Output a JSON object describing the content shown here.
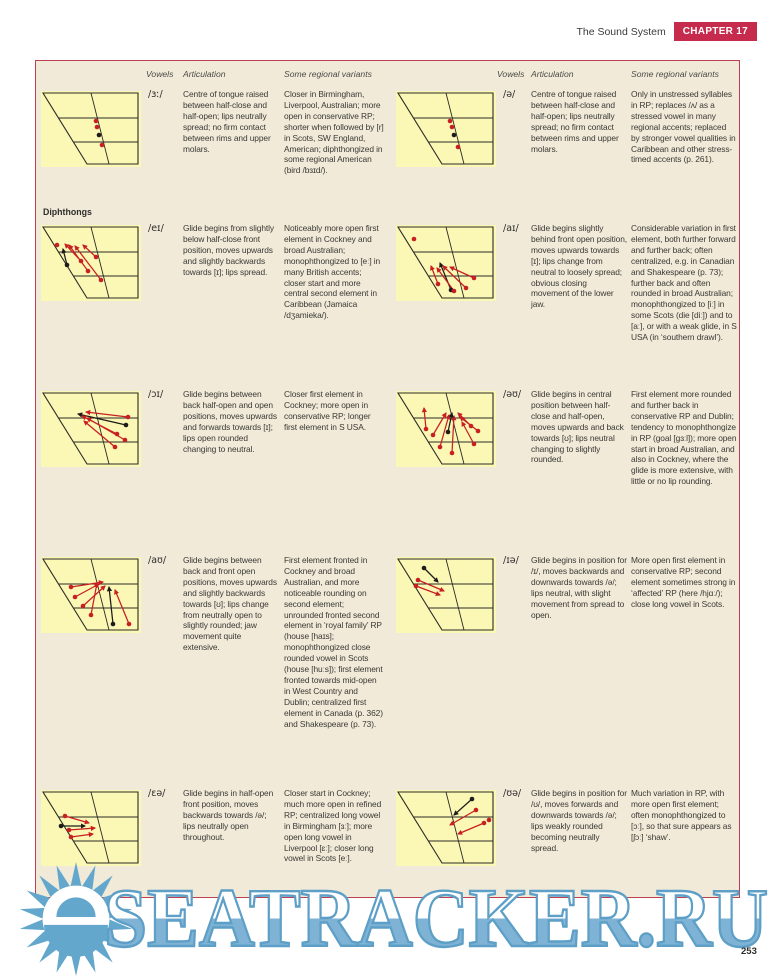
{
  "page": {
    "header_title": "The Sound System",
    "chapter_badge": "CHAPTER 17",
    "page_number": "253"
  },
  "colors": {
    "accent_red": "#c62a4c",
    "panel_background": "#f1ead9",
    "diagram_background": "#fbf7b4",
    "arrow_red": "#c81f23",
    "arrow_black": "#1d1c1a",
    "watermark_blue": "#64a7cc"
  },
  "table": {
    "col_headers": {
      "vowels": "Vowels",
      "articulation": "Articulation",
      "variants": "Some regional variants"
    },
    "section_label": "Diphthongs",
    "rows": [
      {
        "left": {
          "vowel": "/ɜː/",
          "articulation": "Centre of tongue raised between half-close and half-open; lips neutrally spread; no firm contact between rims and upper molars.",
          "variants": "Closer in Birmingham, Liverpool, Australian; more open in conservative RP; shorter when followed by [r] in Scots, SW England, American; diphthongized in some regional American (bird /bɜɪd/).",
          "diagram": {
            "arrows": [],
            "dots": [
              [
                55,
                30,
                "r"
              ],
              [
                56,
                36,
                "r"
              ],
              [
                58,
                44,
                "k"
              ],
              [
                61,
                54,
                "r"
              ]
            ]
          }
        },
        "right": {
          "vowel": "/ə/",
          "articulation": "Centre of tongue raised between half-close and half-open; lips neutrally spread; no firm contact between rims and upper molars.",
          "variants": "Only in unstressed syllables in RP; replaces /ʌ/ as a stressed vowel in many regional accents; replaced by stronger vowel qualities in Caribbean and other stress-timed accents (p. 261).",
          "diagram": {
            "arrows": [],
            "dots": [
              [
                54,
                30,
                "r"
              ],
              [
                56,
                36,
                "r"
              ],
              [
                58,
                44,
                "k"
              ],
              [
                62,
                56,
                "r"
              ]
            ]
          }
        }
      },
      {
        "left": {
          "vowel": "/eɪ/",
          "articulation": "Glide begins from slightly below half-close front position, moves upwards and slightly backwards towards [ɪ]; lips spread.",
          "variants": "Noticeably more open first element in Cockney and broad Australian; monophthongized to [eː] in many British accents; closer start and more central second element in Caribbean (Jamaica /dʒamieka/).",
          "diagram": {
            "arrows": [
              [
                26,
                40,
                22,
                24,
                "k"
              ],
              [
                40,
                36,
                24,
                19,
                "r"
              ],
              [
                47,
                46,
                28,
                20,
                "r"
              ],
              [
                60,
                55,
                34,
                21,
                "r"
              ],
              [
                55,
                32,
                42,
                20,
                "r"
              ]
            ],
            "dots": [
              [
                26,
                40,
                "k"
              ],
              [
                40,
                36,
                "r"
              ],
              [
                47,
                46,
                "r"
              ],
              [
                60,
                55,
                "r"
              ],
              [
                55,
                32,
                "r"
              ],
              [
                16,
                20,
                "r"
              ]
            ]
          }
        },
        "right": {
          "vowel": "/aɪ/",
          "articulation": "Glide begins slightly behind front open position, moves upwards towards [ɪ]; lips change from neutral to loosely spread; obvious closing movement of the lower jaw.",
          "variants": "Considerable variation in first element, both further forward and further back; often centralized, e.g. in Canadian and Shakespeare (p. 73); further back and often rounded in broad Australian; monophthongized to [iː] in some Scots (die [diː]) and to [aː], or with a weak glide, in S USA (in ‘southern drawl’).",
          "diagram": {
            "arrows": [
              [
                55,
                65,
                44,
                38,
                "k"
              ],
              [
                42,
                59,
                35,
                41,
                "r"
              ],
              [
                58,
                66,
                41,
                43,
                "r"
              ],
              [
                70,
                63,
                47,
                41,
                "r"
              ],
              [
                78,
                53,
                54,
                42,
                "r"
              ]
            ],
            "dots": [
              [
                55,
                65,
                "k"
              ],
              [
                42,
                59,
                "r"
              ],
              [
                58,
                66,
                "r"
              ],
              [
                70,
                63,
                "r"
              ],
              [
                78,
                53,
                "r"
              ],
              [
                18,
                14,
                "r"
              ]
            ]
          }
        }
      },
      {
        "left": {
          "vowel": "/ɔɪ/",
          "articulation": "Glide begins between back half-open and open positions, moves upwards and forwards towards [ɪ]; lips open rounded changing to neutral.",
          "variants": "Closer first element in Cockney; more open in conservative RP; longer first element in S USA.",
          "diagram": {
            "arrows": [
              [
                85,
                34,
                37,
                23,
                "k"
              ],
              [
                87,
                26,
                45,
                21,
                "r"
              ],
              [
                76,
                43,
                41,
                25,
                "r"
              ],
              [
                84,
                49,
                46,
                27,
                "r"
              ],
              [
                74,
                56,
                43,
                30,
                "r"
              ]
            ],
            "dots": [
              [
                85,
                34,
                "k"
              ],
              [
                87,
                26,
                "r"
              ],
              [
                76,
                43,
                "r"
              ],
              [
                84,
                49,
                "r"
              ],
              [
                74,
                56,
                "r"
              ]
            ]
          }
        },
        "right": {
          "vowel": "/əʊ/",
          "articulation": "Glide begins in central position between half-close and half-open, moves upwards and back towards [ʊ]; lips neutral changing to slightly rounded.",
          "variants": "First element more rounded and further back in conservative RP and Dublin; tendency to monophthongize in RP (goal [gɜːl]); more open start in broad Australian, and also in Cockney, where the glide is more extensive, with little or no lip rounding.",
          "diagram": {
            "arrows": [
              [
                30,
                38,
                28,
                17,
                "r"
              ],
              [
                37,
                44,
                50,
                22,
                "r"
              ],
              [
                44,
                56,
                53,
                24,
                "r"
              ],
              [
                56,
                62,
                58,
                25,
                "r"
              ],
              [
                52,
                41,
                56,
                22,
                "k"
              ],
              [
                75,
                35,
                62,
                22,
                "r"
              ],
              [
                82,
                40,
                64,
                26,
                "r"
              ],
              [
                78,
                53,
                66,
                31,
                "r"
              ]
            ],
            "dots": [
              [
                30,
                38,
                "r"
              ],
              [
                37,
                44,
                "r"
              ],
              [
                44,
                56,
                "r"
              ],
              [
                56,
                62,
                "r"
              ],
              [
                52,
                41,
                "k"
              ],
              [
                75,
                35,
                "r"
              ],
              [
                82,
                40,
                "r"
              ],
              [
                78,
                53,
                "r"
              ]
            ]
          }
        }
      },
      {
        "left": {
          "vowel": "/aʊ/",
          "articulation": "Glide begins between back and front open positions, moves upwards and slightly backwards towards [ʊ]; lips change from neutrally open to slightly rounded; jaw movement quite extensive.",
          "variants": "First element fronted in Cockney and broad Australian, and more noticeable rounding on second element; unrounded fronted second element in ‘royal family’ RP (house [haɪs]; monophthongized close rounded vowel in Scots (house [huːs]); first element fronted towards mid-open in West Country and Dublin; centralized first element in Canada (p. 362) and Shakespeare (p. 73).",
          "diagram": {
            "arrows": [
              [
                30,
                30,
                62,
                25,
                "r"
              ],
              [
                34,
                40,
                58,
                27,
                "r"
              ],
              [
                42,
                49,
                64,
                29,
                "r"
              ],
              [
                50,
                58,
                56,
                26,
                "r"
              ],
              [
                88,
                67,
                74,
                33,
                "r"
              ],
              [
                72,
                67,
                68,
                30,
                "k"
              ]
            ],
            "dots": [
              [
                30,
                30,
                "r"
              ],
              [
                34,
                40,
                "r"
              ],
              [
                42,
                49,
                "r"
              ],
              [
                50,
                58,
                "r"
              ],
              [
                88,
                67,
                "r"
              ],
              [
                72,
                67,
                "k"
              ]
            ]
          }
        },
        "right": {
          "vowel": "/ɪə/",
          "articulation": "Glide begins in position for /ɪ/, moves backwards and downwards towards /ə/; lips neutral, with slight movement from spread to open.",
          "variants": "More open first element in conservative RP; second element sometimes strong in ‘affected’ RP (here /hjɑː/); close long vowel in Scots.",
          "diagram": {
            "arrows": [
              [
                28,
                11,
                42,
                25,
                "k"
              ],
              [
                22,
                23,
                48,
                34,
                "r"
              ],
              [
                20,
                29,
                44,
                38,
                "r"
              ]
            ],
            "dots": [
              [
                28,
                11,
                "k"
              ],
              [
                22,
                23,
                "r"
              ],
              [
                20,
                29,
                "r"
              ]
            ]
          }
        }
      },
      {
        "left": {
          "vowel": "/ɛə/",
          "articulation": "Glide begins in half-open front position, moves backwards towards /ə/; lips neutrally open throughout.",
          "variants": "Closer start in Cockney; much more open in refined RP; centralized long vowel in Birmingham [ɜː]; more open long vowel in Liverpool [ɛː]; closer long vowel in Scots [eː].",
          "diagram": {
            "arrows": [
              [
                24,
                26,
                48,
                33,
                "r"
              ],
              [
                20,
                36,
                44,
                36,
                "k"
              ],
              [
                28,
                40,
                54,
                38,
                "r"
              ],
              [
                30,
                47,
                52,
                44,
                "r"
              ]
            ],
            "dots": [
              [
                24,
                26,
                "r"
              ],
              [
                20,
                36,
                "k"
              ],
              [
                28,
                40,
                "r"
              ],
              [
                30,
                47,
                "r"
              ]
            ]
          }
        },
        "right": {
          "vowel": "/ʊə/",
          "articulation": "Glide begins in position for /ʊ/, moves forwards and downwards towards /ə/; lips weakly rounded becoming neutrally spread.",
          "variants": "Much variation in RP, with more open first element; often monophthongized to [ɔː], so that sure appears as [ʃɔː] ‘shaw’.",
          "diagram": {
            "arrows": [
              [
                76,
                9,
                58,
                25,
                "k"
              ],
              [
                80,
                20,
                54,
                35,
                "r"
              ],
              [
                88,
                33,
                62,
                44,
                "r"
              ]
            ],
            "dots": [
              [
                76,
                9,
                "k"
              ],
              [
                80,
                20,
                "r"
              ],
              [
                88,
                33,
                "r"
              ],
              [
                93,
                30,
                "r"
              ]
            ]
          }
        }
      }
    ]
  },
  "watermark": {
    "text": "SEATRACKER.RU"
  }
}
